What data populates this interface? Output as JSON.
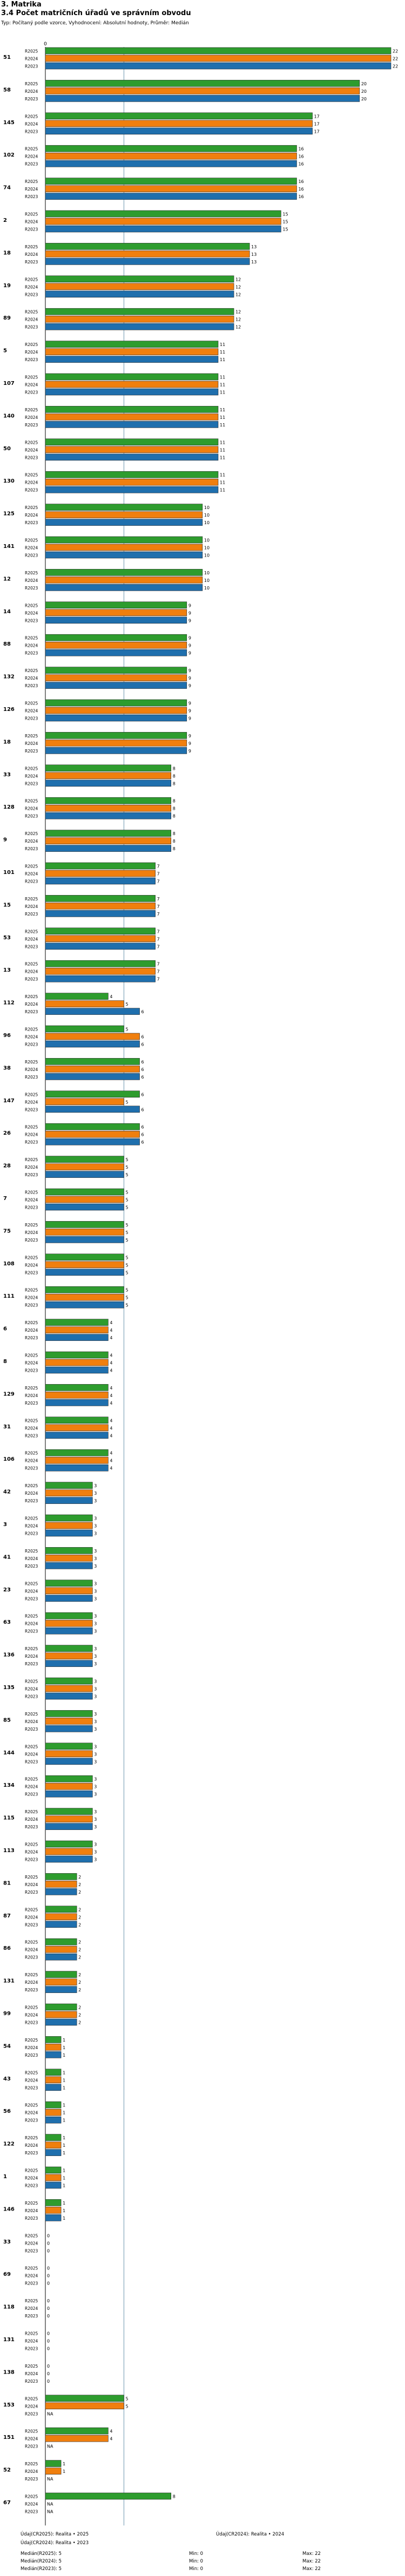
{
  "header": {
    "section": "3. Matrika",
    "title": "3.4 Počet matričních úřadů ve správním obvodu",
    "subtitle": "Typ: Počítaný podle vzorce, Vyhodnocení: Absolutní hodnoty, Průměr: Medián"
  },
  "colors": {
    "R2025": "#2e9c2e",
    "R2024": "#f07f0e",
    "R2023": "#1f6fad",
    "median_line": "#9ab7c8"
  },
  "chart_data": {
    "type": "bar",
    "orientation": "horizontal",
    "axis_zero_label": "0",
    "xlim": [
      0,
      22
    ],
    "median_line_value": 5,
    "series_names": [
      "R2025",
      "R2024",
      "R2023"
    ],
    "na_label": "NA",
    "groups": [
      {
        "id": "51",
        "values": [
          22,
          22,
          22
        ]
      },
      {
        "id": "58",
        "values": [
          20,
          20,
          20
        ]
      },
      {
        "id": "145",
        "values": [
          17,
          17,
          17
        ]
      },
      {
        "id": "102",
        "values": [
          16,
          16,
          16
        ]
      },
      {
        "id": "74",
        "values": [
          16,
          16,
          16
        ]
      },
      {
        "id": "2",
        "values": [
          15,
          15,
          15
        ]
      },
      {
        "id": "18",
        "values": [
          13,
          13,
          13
        ]
      },
      {
        "id": "19",
        "values": [
          12,
          12,
          12
        ]
      },
      {
        "id": "89",
        "values": [
          12,
          12,
          12
        ]
      },
      {
        "id": "5",
        "values": [
          11,
          11,
          11
        ]
      },
      {
        "id": "107",
        "values": [
          11,
          11,
          11
        ]
      },
      {
        "id": "140",
        "values": [
          11,
          11,
          11
        ]
      },
      {
        "id": "50",
        "values": [
          11,
          11,
          11
        ]
      },
      {
        "id": "130",
        "values": [
          11,
          11,
          11
        ]
      },
      {
        "id": "125",
        "values": [
          10,
          10,
          10
        ]
      },
      {
        "id": "141",
        "values": [
          10,
          10,
          10
        ]
      },
      {
        "id": "12",
        "values": [
          10,
          10,
          10
        ]
      },
      {
        "id": "14",
        "values": [
          9,
          9,
          9
        ]
      },
      {
        "id": "88",
        "values": [
          9,
          9,
          9
        ]
      },
      {
        "id": "132",
        "values": [
          9,
          9,
          9
        ]
      },
      {
        "id": "126",
        "values": [
          9,
          9,
          9
        ]
      },
      {
        "id": "18",
        "values": [
          9,
          9,
          9
        ]
      },
      {
        "id": "33",
        "values": [
          8,
          8,
          8
        ]
      },
      {
        "id": "128",
        "values": [
          8,
          8,
          8
        ]
      },
      {
        "id": "9",
        "values": [
          8,
          8,
          8
        ]
      },
      {
        "id": "101",
        "values": [
          7,
          7,
          7
        ]
      },
      {
        "id": "15",
        "values": [
          7,
          7,
          7
        ]
      },
      {
        "id": "53",
        "values": [
          7,
          7,
          7
        ]
      },
      {
        "id": "13",
        "values": [
          7,
          7,
          7
        ]
      },
      {
        "id": "112",
        "values": [
          4,
          5,
          6
        ]
      },
      {
        "id": "96",
        "values": [
          5,
          6,
          6
        ]
      },
      {
        "id": "38",
        "values": [
          6,
          6,
          6
        ]
      },
      {
        "id": "147",
        "values": [
          6,
          5,
          6
        ]
      },
      {
        "id": "26",
        "values": [
          6,
          6,
          6
        ]
      },
      {
        "id": "28",
        "values": [
          5,
          5,
          5
        ]
      },
      {
        "id": "7",
        "values": [
          5,
          5,
          5
        ]
      },
      {
        "id": "75",
        "values": [
          5,
          5,
          5
        ]
      },
      {
        "id": "108",
        "values": [
          5,
          5,
          5
        ]
      },
      {
        "id": "111",
        "values": [
          5,
          5,
          5
        ]
      },
      {
        "id": "6",
        "values": [
          4,
          4,
          4
        ]
      },
      {
        "id": "8",
        "values": [
          4,
          4,
          4
        ]
      },
      {
        "id": "129",
        "values": [
          4,
          4,
          4
        ]
      },
      {
        "id": "31",
        "values": [
          4,
          4,
          4
        ]
      },
      {
        "id": "106",
        "values": [
          4,
          4,
          4
        ]
      },
      {
        "id": "42",
        "values": [
          3,
          3,
          3
        ]
      },
      {
        "id": "3",
        "values": [
          3,
          3,
          3
        ]
      },
      {
        "id": "41",
        "values": [
          3,
          3,
          3
        ]
      },
      {
        "id": "23",
        "values": [
          3,
          3,
          3
        ]
      },
      {
        "id": "63",
        "values": [
          3,
          3,
          3
        ]
      },
      {
        "id": "136",
        "values": [
          3,
          3,
          3
        ]
      },
      {
        "id": "135",
        "values": [
          3,
          3,
          3
        ]
      },
      {
        "id": "85",
        "values": [
          3,
          3,
          3
        ]
      },
      {
        "id": "144",
        "values": [
          3,
          3,
          3
        ]
      },
      {
        "id": "134",
        "values": [
          3,
          3,
          3
        ]
      },
      {
        "id": "115",
        "values": [
          3,
          3,
          3
        ]
      },
      {
        "id": "113",
        "values": [
          3,
          3,
          3
        ]
      },
      {
        "id": "81",
        "values": [
          2,
          2,
          2
        ]
      },
      {
        "id": "87",
        "values": [
          2,
          2,
          2
        ]
      },
      {
        "id": "86",
        "values": [
          2,
          2,
          2
        ]
      },
      {
        "id": "131",
        "values": [
          2,
          2,
          2
        ]
      },
      {
        "id": "99",
        "values": [
          2,
          2,
          2
        ]
      },
      {
        "id": "54",
        "values": [
          1,
          1,
          1
        ]
      },
      {
        "id": "43",
        "values": [
          1,
          1,
          1
        ]
      },
      {
        "id": "56",
        "values": [
          1,
          1,
          1
        ]
      },
      {
        "id": "122",
        "values": [
          1,
          1,
          1
        ]
      },
      {
        "id": "1",
        "values": [
          1,
          1,
          1
        ]
      },
      {
        "id": "146",
        "values": [
          1,
          1,
          1
        ]
      },
      {
        "id": "33",
        "values": [
          0,
          0,
          0
        ]
      },
      {
        "id": "69",
        "values": [
          0,
          0,
          0
        ]
      },
      {
        "id": "118",
        "values": [
          0,
          0,
          0
        ]
      },
      {
        "id": "131",
        "values": [
          0,
          0,
          0
        ]
      },
      {
        "id": "138",
        "values": [
          0,
          0,
          0
        ]
      },
      {
        "id": "153",
        "values": [
          5,
          5,
          null
        ]
      },
      {
        "id": "151",
        "values": [
          4,
          4,
          null
        ]
      },
      {
        "id": "52",
        "values": [
          1,
          1,
          null
        ]
      },
      {
        "id": "67",
        "values": [
          8,
          null,
          null
        ]
      }
    ]
  },
  "stats": [
    {
      "label": "Údaj(CR2025): Realita • 2025",
      "value": ""
    },
    {
      "label": "Údaj(CR2024): Realita • 2024",
      "value": ""
    },
    {
      "label": "Údaj(CR2024): Realita • 2023",
      "value": ""
    },
    {
      "label": "Medián(R2025): 5",
      "value": "Min: 0",
      "max": "Max: 22"
    },
    {
      "label": "Medián(R2024): 5",
      "value": "Min: 0",
      "max": "Max: 22"
    },
    {
      "label": "Medián(R2023): 5",
      "value": "Min: 0",
      "max": "Max: 22"
    }
  ]
}
